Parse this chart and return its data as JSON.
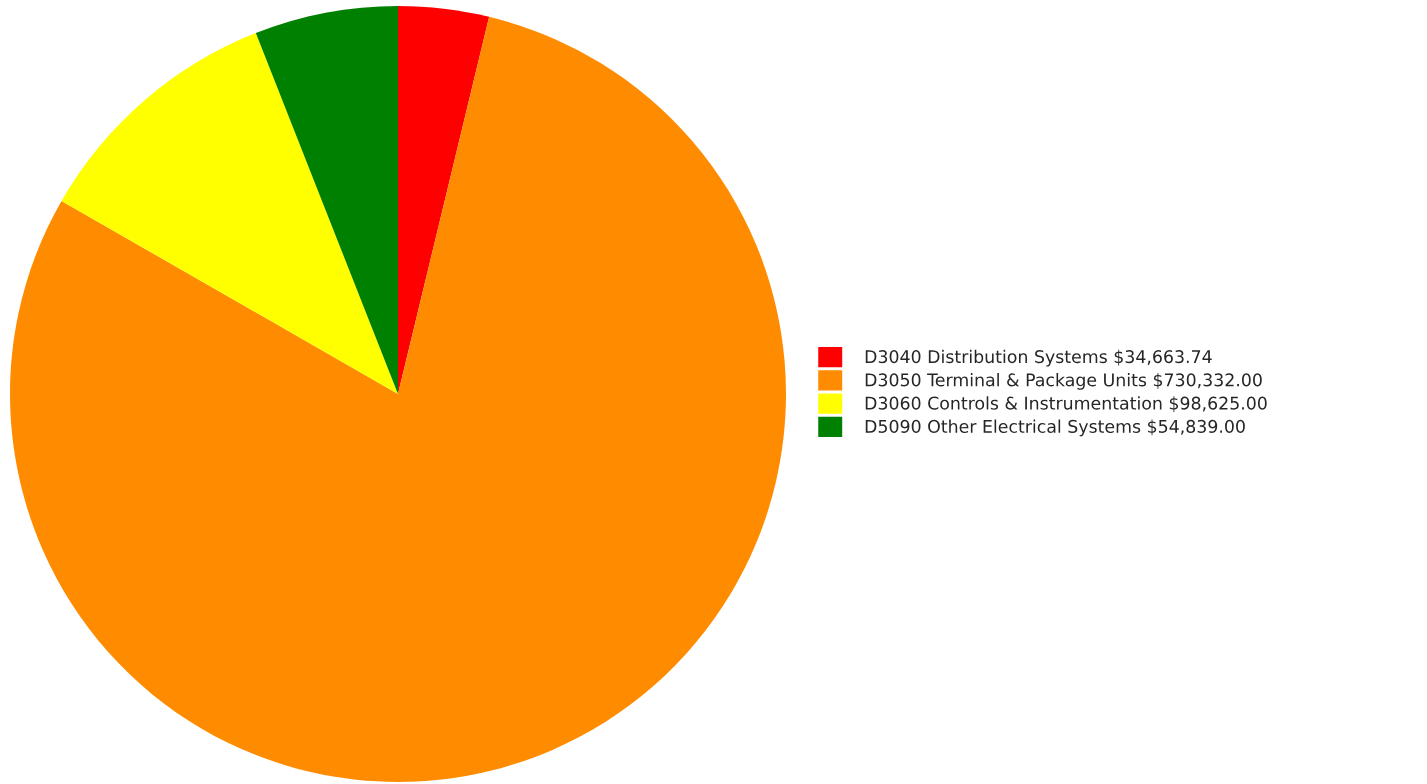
{
  "chart_data": {
    "type": "pie",
    "categories": [
      "D3040 Distribution Systems $34,663.74",
      "D3050 Terminal & Package Units $730,332.00",
      "D3060 Controls & Instrumentation $98,625.00",
      "D5090 Other Electrical Systems $54,839.00"
    ],
    "values": [
      34663.74,
      730332.0,
      98625.0,
      54839.0
    ],
    "colors": [
      "#ff0000",
      "#ff8c00",
      "#ffff00",
      "#008000"
    ],
    "legend": "right"
  }
}
